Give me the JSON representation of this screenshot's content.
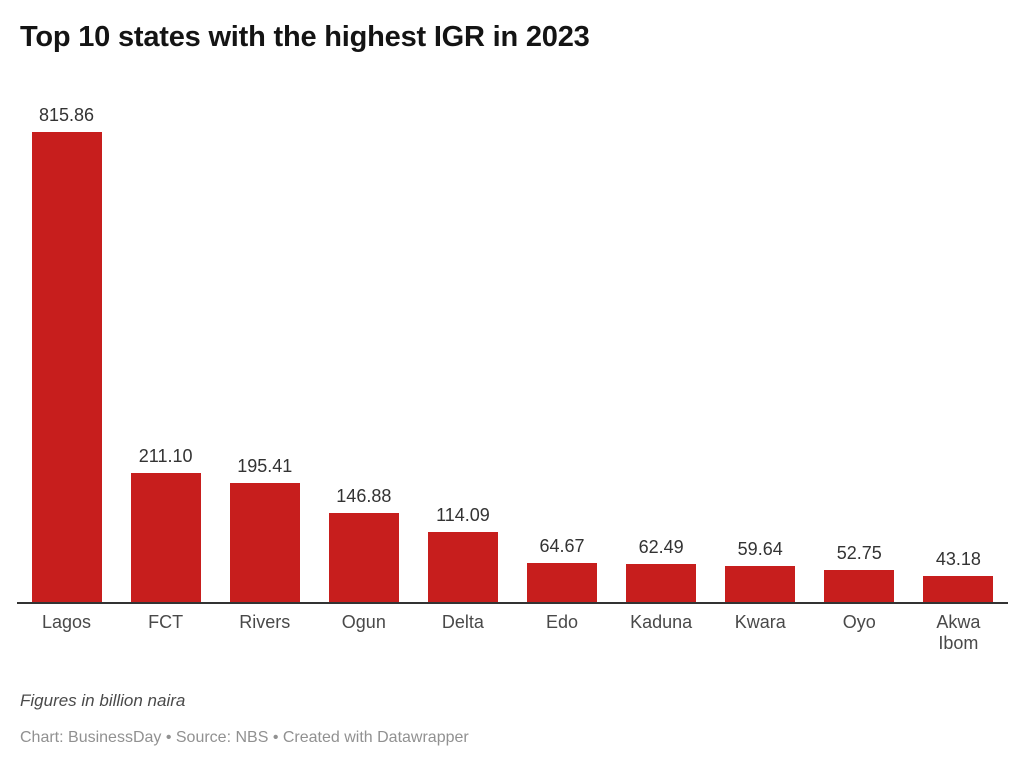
{
  "title": "Top 10 states with the highest IGR in 2023",
  "chart_data": {
    "type": "bar",
    "categories": [
      "Lagos",
      "FCT",
      "Rivers",
      "Ogun",
      "Delta",
      "Edo",
      "Kaduna",
      "Kwara",
      "Oyo",
      "Akwa Ibom"
    ],
    "values": [
      815.86,
      211.1,
      195.41,
      146.88,
      114.09,
      64.67,
      62.49,
      59.64,
      52.75,
      43.18
    ],
    "value_labels": [
      "815.86",
      "211.10",
      "195.41",
      "146.88",
      "114.09",
      "64.67",
      "62.49",
      "59.64",
      "52.75",
      "43.18"
    ],
    "title": "Top 10 states with the highest IGR in 2023",
    "xlabel": "",
    "ylabel": "",
    "ylim": [
      0,
      815.86
    ],
    "grid": false,
    "legend": false,
    "orientation": "vertical",
    "bar_color": "#c71e1d"
  },
  "footer": {
    "note": "Figures in billion naira",
    "credit": "Chart: BusinessDay • Source: NBS • Created with Datawrapper"
  },
  "colors": {
    "bar": "#c71e1d",
    "title": "#141414",
    "value_label": "#333333",
    "axis_label": "#494949",
    "axis_line": "#333333",
    "note": "#4a4a4a",
    "credit": "#919191"
  }
}
